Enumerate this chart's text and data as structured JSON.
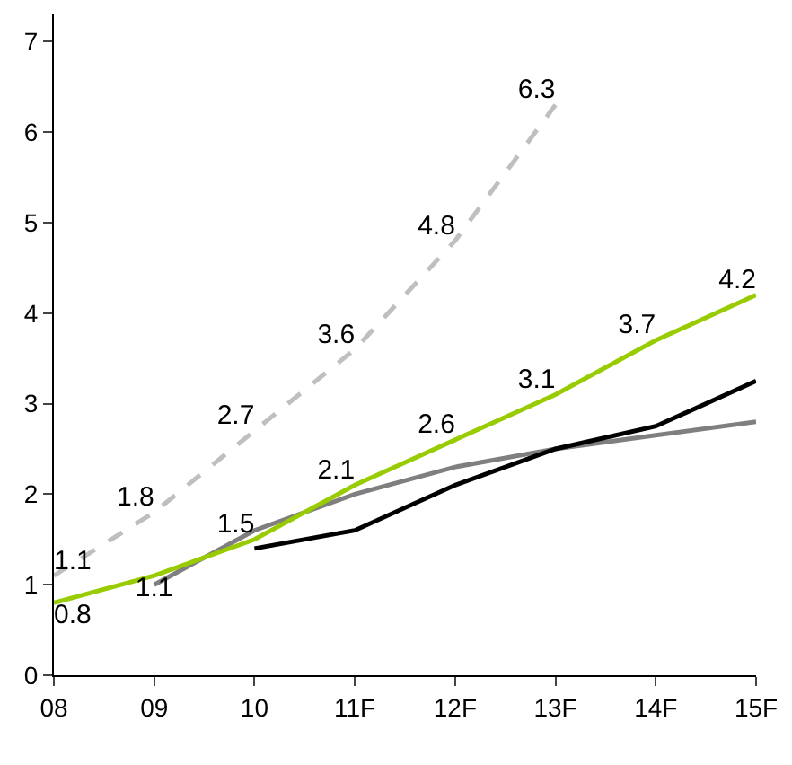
{
  "chart_data": {
    "type": "line",
    "categories": [
      "08",
      "09",
      "10",
      "11F",
      "12F",
      "13F",
      "14F",
      "15F"
    ],
    "series": [
      {
        "color": "#7f7f7f",
        "line_style": "solid",
        "values": [
          null,
          1.0,
          1.6,
          2.0,
          2.3,
          2.5,
          2.65,
          2.8
        ]
      },
      {
        "color": "#bfbfbf",
        "line_style": "dashed",
        "values": [
          1.1,
          1.8,
          2.7,
          3.6,
          4.8,
          6.3,
          null,
          null
        ],
        "value_labels": [
          "1.1",
          "1.8",
          "2.7",
          "3.6",
          "4.8",
          "6.3",
          null,
          null
        ]
      },
      {
        "color": "#000000",
        "line_style": "solid",
        "values": [
          null,
          null,
          1.4,
          1.6,
          2.1,
          2.5,
          2.75,
          3.25
        ]
      },
      {
        "color": "#99cc00",
        "line_style": "solid",
        "values": [
          0.8,
          1.1,
          1.5,
          2.1,
          2.6,
          3.1,
          3.7,
          4.2
        ],
        "value_labels": [
          "0.8",
          "1.1",
          "1.5",
          "2.1",
          "2.6",
          "3.1",
          "3.7",
          "4.2"
        ]
      }
    ],
    "ylim": [
      0,
      7.3
    ],
    "yticks": [
      0,
      1,
      2,
      3,
      4,
      5,
      6,
      7
    ],
    "marker": "none"
  }
}
